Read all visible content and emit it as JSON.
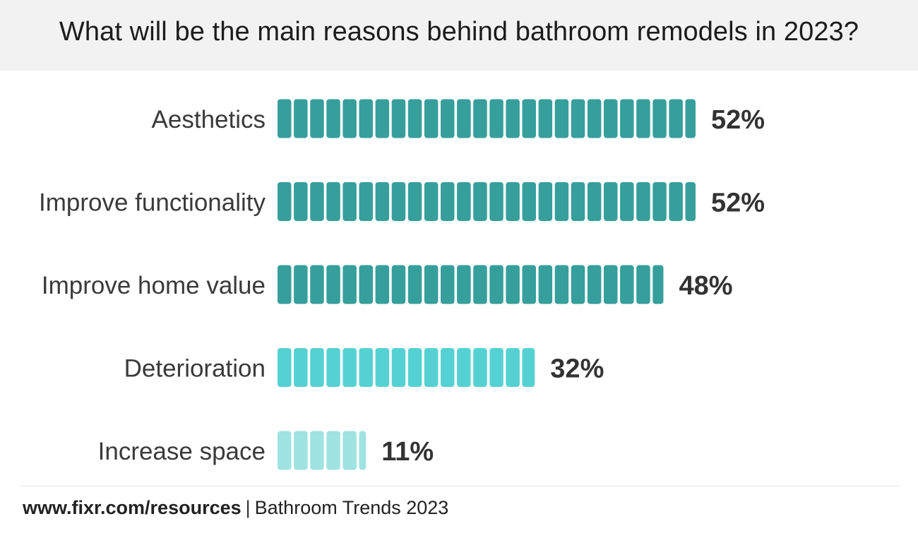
{
  "header": {
    "title": "What will be the main reasons behind bathroom remodels in 2023?"
  },
  "chart_data": {
    "type": "bar",
    "orientation": "horizontal",
    "categories": [
      "Aesthetics",
      "Improve functionality",
      "Improve home value",
      "Deterioration",
      "Increase space"
    ],
    "values": [
      52,
      52,
      48,
      32,
      11
    ],
    "value_labels": [
      "52%",
      "52%",
      "48%",
      "32%",
      "11%"
    ],
    "bar_colors": [
      "#369f9b",
      "#369f9b",
      "#369f9b",
      "#56d1d3",
      "#9fe3e2"
    ],
    "value_unit": "%"
  },
  "footer": {
    "site": "www.fixr.com/resources",
    "separator": "|",
    "source": "Bathroom Trends 2023"
  },
  "colors": {
    "header_bg": "#f2f2f2",
    "label_text": "#3a3a3a",
    "value_text": "#333333"
  }
}
